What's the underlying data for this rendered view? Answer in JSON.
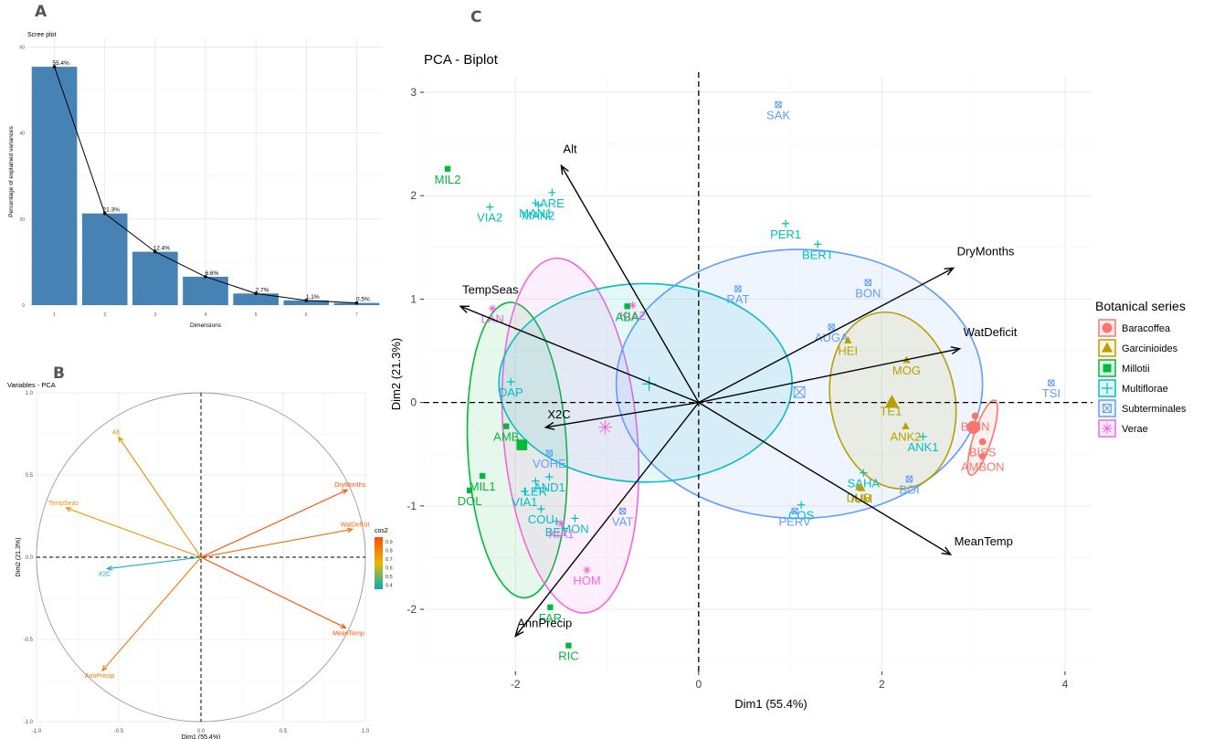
{
  "panel_labels": {
    "a": "A",
    "b": "B",
    "c": "C"
  },
  "colors": {
    "bar": "#4682b4",
    "Baracoffea": "#f8766d",
    "Garcinioides": "#b79f00",
    "Millotii": "#00ba38",
    "Multiflorae": "#00bfc4",
    "Subterminales": "#619cff",
    "Verae": "#f564e3"
  },
  "chart_data": [
    {
      "type": "bar",
      "title": "Scree plot",
      "xlabel": "Dimensions",
      "ylabel": "Percentage of explained variances",
      "categories": [
        "1",
        "2",
        "3",
        "4",
        "5",
        "6",
        "7"
      ],
      "values": [
        55.4,
        21.3,
        12.4,
        6.6,
        2.7,
        1.1,
        0.5
      ],
      "value_labels": [
        "55.4%",
        "21.3%",
        "12.4%",
        "6.6%",
        "2.7%",
        "1.1%",
        "0.5%"
      ],
      "ylim": [
        0,
        62
      ],
      "y_ticks": [
        "0",
        "20",
        "40",
        "60"
      ],
      "line_overlay": true
    },
    {
      "type": "scatter",
      "title": "Variables - PCA",
      "xlabel": "Dim1 (55.4%)",
      "ylabel": "Dim2 (21.3%)",
      "xlim": [
        -1.0,
        1.0
      ],
      "ylim": [
        -1.0,
        1.0
      ],
      "x_ticks": [
        "-1.0",
        "-0.5",
        "0.0",
        "0.5",
        "1.0"
      ],
      "y_ticks": [
        "-1.0",
        "-0.5",
        "0.0",
        "0.5",
        "1.0"
      ],
      "legend_title": "cos2",
      "legend_ticks": [
        "0.9",
        "0.8",
        "0.7",
        "0.6",
        "0.5",
        "0.4"
      ],
      "cos2_range": [
        0.35,
        0.95
      ],
      "vectors": [
        {
          "name": "Alt",
          "x": -0.5,
          "y": 0.73,
          "cos2": 0.78
        },
        {
          "name": "TempSeas",
          "x": -0.82,
          "y": 0.3,
          "cos2": 0.76
        },
        {
          "name": "X2C",
          "x": -0.57,
          "y": -0.07,
          "cos2": 0.36
        },
        {
          "name": "DryMonths",
          "x": 0.89,
          "y": 0.41,
          "cos2": 0.95
        },
        {
          "name": "WatDeficit",
          "x": 0.92,
          "y": 0.17,
          "cos2": 0.87
        },
        {
          "name": "MeanTemp",
          "x": 0.88,
          "y": -0.43,
          "cos2": 0.95
        },
        {
          "name": "AnnPrecip",
          "x": -0.6,
          "y": -0.69,
          "cos2": 0.84
        }
      ]
    },
    {
      "type": "scatter",
      "title": "PCA - Biplot",
      "xlabel": "Dim1 (55.4%)",
      "ylabel": "Dim2 (21.3%)",
      "xlim": [
        -3.0,
        4.3
      ],
      "ylim": [
        -2.6,
        3.15
      ],
      "x_ticks": [
        -2,
        0,
        2,
        4
      ],
      "y_ticks": [
        -2,
        -1,
        0,
        1,
        2,
        3
      ],
      "legend_title": "Botanical series",
      "legend_position": "right",
      "groups": [
        {
          "name": "Baracoffea",
          "shape": "circle"
        },
        {
          "name": "Garcinioides",
          "shape": "triangle"
        },
        {
          "name": "Millotii",
          "shape": "square"
        },
        {
          "name": "Multiflorae",
          "shape": "plus"
        },
        {
          "name": "Subterminales",
          "shape": "boxx"
        },
        {
          "name": "Verae",
          "shape": "star"
        }
      ],
      "points": [
        {
          "label": "SAK",
          "x": 0.87,
          "y": 2.88,
          "group": "Subterminales"
        },
        {
          "label": "MIL2",
          "x": -2.74,
          "y": 2.26,
          "group": "Millotii"
        },
        {
          "label": "ARE",
          "x": -1.6,
          "y": 2.03,
          "group": "Multiflorae"
        },
        {
          "label": "MAN1",
          "x": -1.78,
          "y": 1.93,
          "group": "Multiflorae"
        },
        {
          "label": "MAN2",
          "x": -1.75,
          "y": 1.91,
          "group": "Multiflorae"
        },
        {
          "label": "VIA2",
          "x": -2.28,
          "y": 1.89,
          "group": "Multiflorae"
        },
        {
          "label": "PER1",
          "x": 0.95,
          "y": 1.73,
          "group": "Multiflorae"
        },
        {
          "label": "BERT",
          "x": 1.3,
          "y": 1.53,
          "group": "Multiflorae"
        },
        {
          "label": "BON",
          "x": 1.85,
          "y": 1.16,
          "group": "Subterminales"
        },
        {
          "label": "RAT",
          "x": 0.43,
          "y": 1.1,
          "group": "Subterminales"
        },
        {
          "label": "KIA2",
          "x": -0.72,
          "y": 0.94,
          "group": "Verae"
        },
        {
          "label": "ABA",
          "x": -0.78,
          "y": 0.93,
          "group": "Millotii"
        },
        {
          "label": "LAN",
          "x": -2.25,
          "y": 0.91,
          "group": "Verae"
        },
        {
          "label": "AUGA",
          "x": 1.45,
          "y": 0.73,
          "group": "Subterminales"
        },
        {
          "label": "HEI",
          "x": 1.63,
          "y": 0.6,
          "group": "Garcinioides"
        },
        {
          "label": "MOG",
          "x": 2.27,
          "y": 0.41,
          "group": "Garcinioides"
        },
        {
          "label": "DAP",
          "x": -2.05,
          "y": 0.2,
          "group": "Multiflorae"
        },
        {
          "label": "TSI",
          "x": 3.85,
          "y": 0.19,
          "group": "Subterminales"
        },
        {
          "label": "TE1",
          "x": 2.1,
          "y": 0.02,
          "group": "Garcinioides"
        },
        {
          "label": "AMB",
          "x": -2.1,
          "y": -0.23,
          "group": "Millotii"
        },
        {
          "label": "BOIN",
          "x": 3.02,
          "y": -0.13,
          "group": "Baracoffea"
        },
        {
          "label": "ANK1",
          "x": 2.45,
          "y": -0.33,
          "group": "Multiflorae"
        },
        {
          "label": "ANK2",
          "x": 2.26,
          "y": -0.23,
          "group": "Garcinioides"
        },
        {
          "label": "BISS",
          "x": 3.1,
          "y": -0.38,
          "group": "Baracoffea"
        },
        {
          "label": "VOHE",
          "x": -1.63,
          "y": -0.49,
          "group": "Subterminales"
        },
        {
          "label": "AMBON",
          "x": 3.1,
          "y": -0.52,
          "group": "Baracoffea"
        },
        {
          "label": "SAHA",
          "x": 1.8,
          "y": -0.68,
          "group": "Multiflorae"
        },
        {
          "label": "IUM",
          "x": 1.78,
          "y": -0.83,
          "group": "Garcinioides"
        },
        {
          "label": "BOI",
          "x": 2.3,
          "y": -0.74,
          "group": "Subterminales"
        },
        {
          "label": "MIL1",
          "x": -2.36,
          "y": -0.71,
          "group": "Millotii"
        },
        {
          "label": "AND1",
          "x": -1.63,
          "y": -0.72,
          "group": "Multiflorae"
        },
        {
          "label": "LER",
          "x": -1.78,
          "y": -0.76,
          "group": "Multiflorae"
        },
        {
          "label": "DOL",
          "x": -2.5,
          "y": -0.85,
          "group": "Millotii"
        },
        {
          "label": "VIA1",
          "x": -1.9,
          "y": -0.86,
          "group": "Multiflorae"
        },
        {
          "label": "COS",
          "x": 1.12,
          "y": -0.99,
          "group": "Multiflorae"
        },
        {
          "label": "DUB",
          "x": 1.75,
          "y": -0.82,
          "group": "Garcinioides"
        },
        {
          "label": "PERV",
          "x": 1.05,
          "y": -1.05,
          "group": "Subterminales"
        },
        {
          "label": "COU",
          "x": -1.72,
          "y": -1.03,
          "group": "Multiflorae"
        },
        {
          "label": "VAT",
          "x": -0.83,
          "y": -1.05,
          "group": "Subterminales"
        },
        {
          "label": "MON",
          "x": -1.35,
          "y": -1.12,
          "group": "Multiflorae"
        },
        {
          "label": "BET",
          "x": -1.55,
          "y": -1.15,
          "group": "Multiflorae"
        },
        {
          "label": "KIA1",
          "x": -1.5,
          "y": -1.17,
          "group": "Verae"
        },
        {
          "label": "HOM",
          "x": -1.22,
          "y": -1.62,
          "group": "Verae"
        },
        {
          "label": "FAR",
          "x": -1.62,
          "y": -1.98,
          "group": "Millotii"
        },
        {
          "label": "RIC",
          "x": -1.42,
          "y": -2.35,
          "group": "Millotii"
        }
      ],
      "ellipses": [
        {
          "group": "Millotii",
          "cx": -1.98,
          "cy": -0.46,
          "rx": 0.54,
          "ry": 1.43,
          "angle": -3
        },
        {
          "group": "Verae",
          "cx": -1.4,
          "cy": -0.32,
          "rx": 0.73,
          "ry": 1.72,
          "angle": -5
        },
        {
          "group": "Multiflorae",
          "cx": -0.58,
          "cy": 0.19,
          "rx": 1.6,
          "ry": 0.96,
          "angle": 0
        },
        {
          "group": "Subterminales",
          "cx": 1.1,
          "cy": 0.18,
          "rx": 2.0,
          "ry": 1.3,
          "angle": 0
        },
        {
          "group": "Garcinioides",
          "cx": 2.12,
          "cy": 0.02,
          "rx": 0.68,
          "ry": 0.86,
          "angle": -10
        },
        {
          "group": "Baracoffea",
          "cx": 3.1,
          "cy": -0.34,
          "rx": 0.1,
          "ry": 0.38,
          "angle": 18
        }
      ],
      "centroids": [
        {
          "group": "Millotii",
          "x": -1.93,
          "y": -0.41
        },
        {
          "group": "Verae",
          "x": -1.02,
          "y": -0.24
        },
        {
          "group": "Multiflorae",
          "x": -0.54,
          "y": 0.18
        },
        {
          "group": "Subterminales",
          "x": 1.1,
          "y": 0.1
        },
        {
          "group": "Garcinioides",
          "x": 2.11,
          "y": 0.0
        },
        {
          "group": "Baracoffea",
          "x": 3.0,
          "y": -0.24
        }
      ],
      "arrows": [
        {
          "name": "Alt",
          "x": -1.5,
          "y": 2.29
        },
        {
          "name": "TempSeas",
          "x": -2.6,
          "y": 0.93
        },
        {
          "name": "X2C",
          "x": -1.67,
          "y": -0.24
        },
        {
          "name": "DryMonths",
          "x": 2.78,
          "y": 1.3
        },
        {
          "name": "WatDeficit",
          "x": 2.85,
          "y": 0.52
        },
        {
          "name": "MeanTemp",
          "x": 2.75,
          "y": -1.47
        },
        {
          "name": "AnnPrecip",
          "x": -2.0,
          "y": -2.26
        }
      ]
    }
  ]
}
